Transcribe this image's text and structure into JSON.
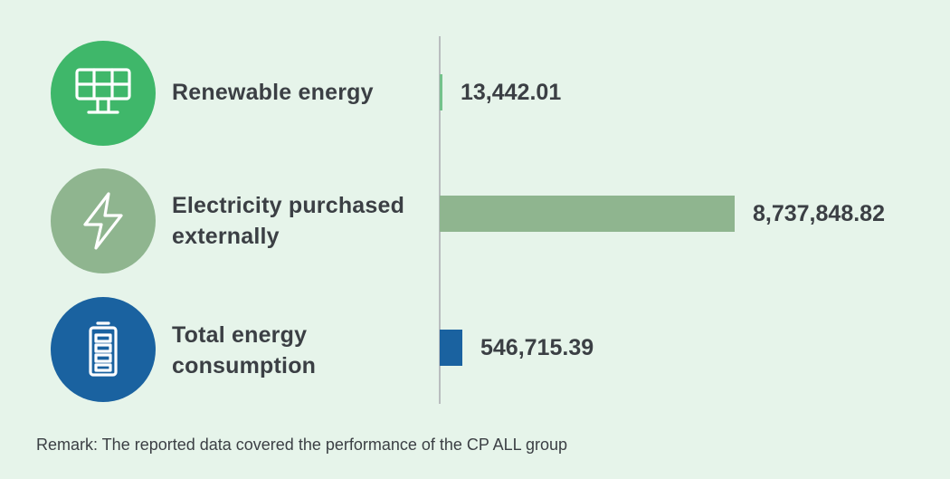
{
  "chart_data": {
    "type": "bar",
    "orientation": "horizontal",
    "categories": [
      "Renewable energy",
      "Electricity purchased externally",
      "Total energy consumption"
    ],
    "category_lines": [
      [
        "Renewable energy"
      ],
      [
        "Electricity purchased",
        "externally"
      ],
      [
        "Total energy",
        "consumption"
      ]
    ],
    "values": [
      13442.01,
      8737848.82,
      546715.39
    ],
    "value_labels": [
      "13,442.01",
      "8,737,848.82",
      "546,715.39"
    ],
    "colors": [
      "#74c28b",
      "#8fb58f",
      "#1a62a0"
    ],
    "icons": [
      "solar-panel-icon",
      "lightning-bolt-icon",
      "battery-icon"
    ],
    "icon_colors": [
      "#3fb76a",
      "#8fb58f",
      "#1a62a0"
    ],
    "grid": false,
    "legend": "none"
  },
  "remark": "Remark: The reported data covered the performance of the CP ALL group"
}
